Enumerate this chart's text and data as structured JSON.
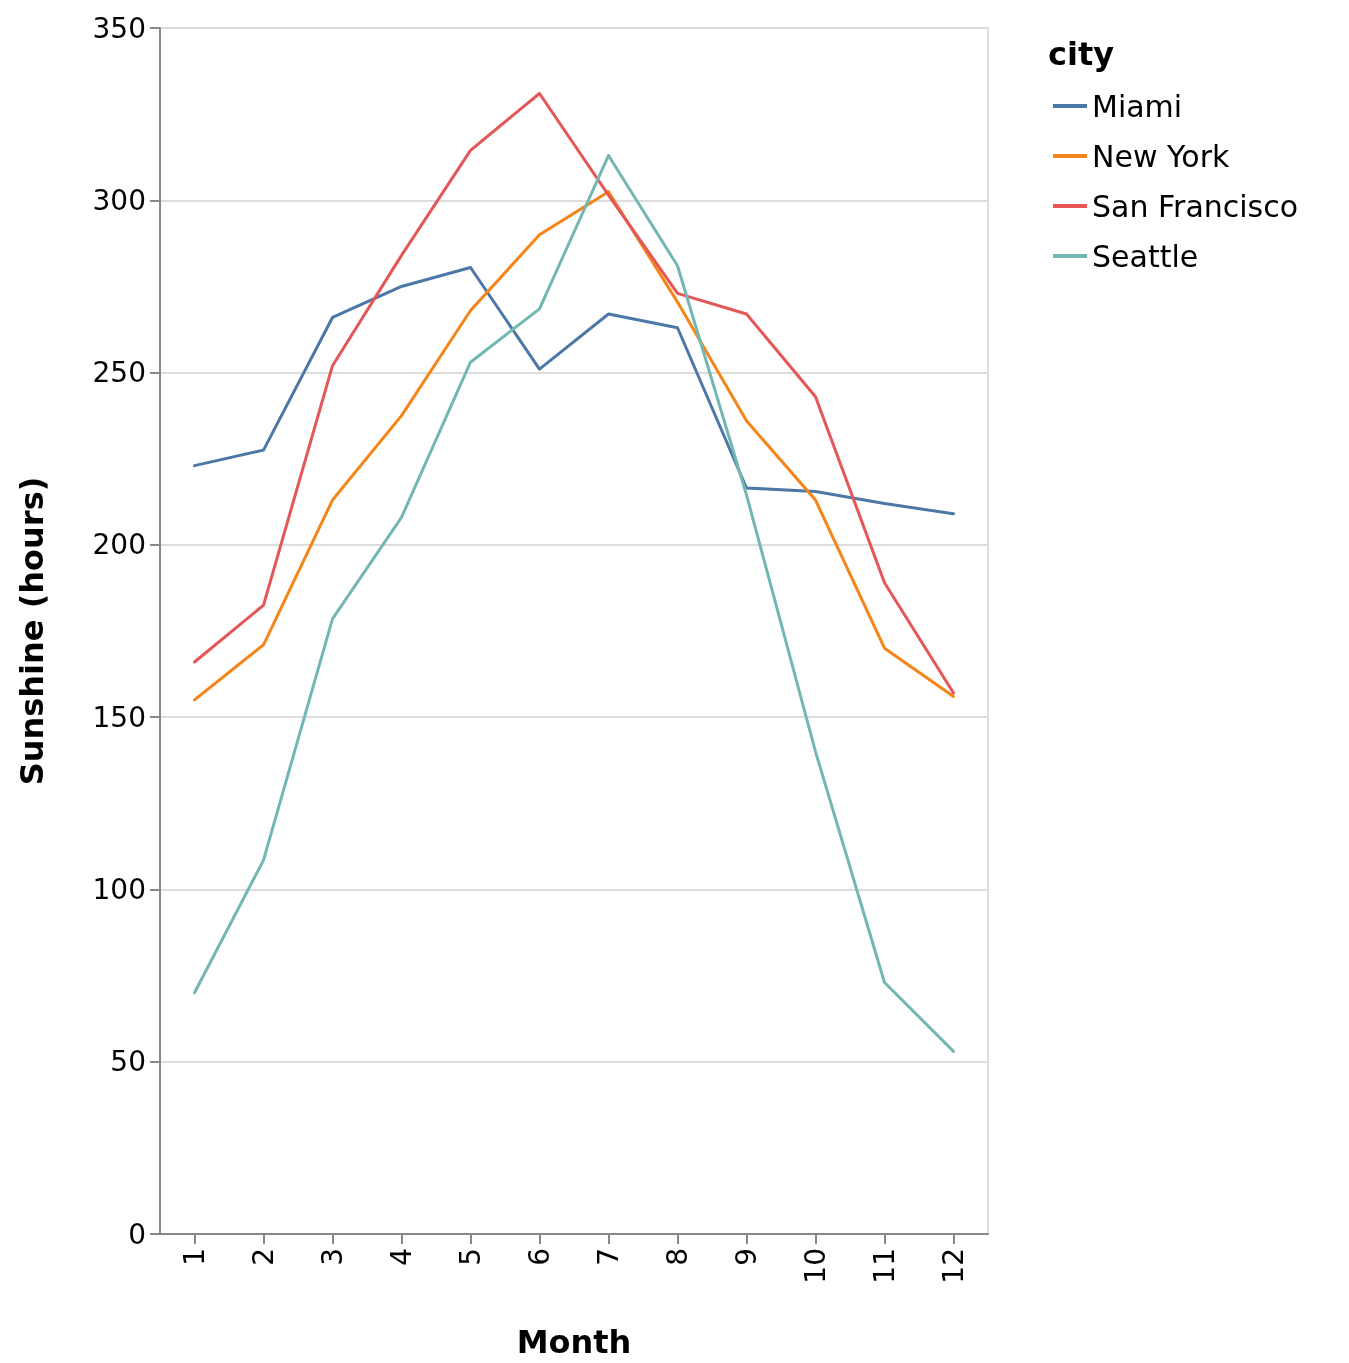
{
  "chart_data": {
    "type": "line",
    "xlabel": "Month",
    "ylabel": "Sunshine (hours)",
    "legend_title": "city",
    "categories": [
      "1",
      "2",
      "3",
      "4",
      "5",
      "6",
      "7",
      "8",
      "9",
      "10",
      "11",
      "12"
    ],
    "series": [
      {
        "name": "Miami",
        "color": "#4c78a8",
        "values": [
          223,
          227.5,
          266,
          275,
          280.5,
          251,
          267,
          263,
          216.5,
          215.5,
          212,
          209
        ]
      },
      {
        "name": "New York",
        "color": "#f58518",
        "values": [
          155,
          171,
          213,
          237.5,
          268,
          290,
          302.5,
          270.5,
          236,
          213,
          170,
          156
        ]
      },
      {
        "name": "San Francisco",
        "color": "#e45756",
        "values": [
          166,
          182.5,
          252,
          284,
          314.5,
          331,
          301.5,
          273,
          267,
          243,
          189,
          157
        ]
      },
      {
        "name": "Seattle",
        "color": "#72b7b2",
        "values": [
          70,
          108.5,
          178.5,
          208,
          253,
          268.5,
          313,
          281,
          214.5,
          140,
          73,
          53
        ]
      }
    ],
    "ylim": [
      0,
      350
    ],
    "yticks": [
      0,
      50,
      100,
      150,
      200,
      250,
      300,
      350
    ],
    "grid": "y",
    "legend": "top right",
    "marker": "none",
    "line_style": "solid"
  }
}
